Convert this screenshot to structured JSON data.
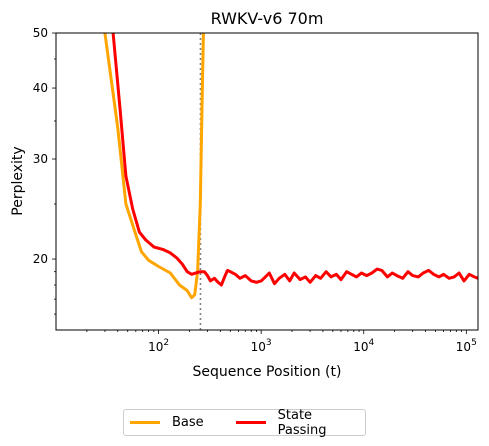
{
  "chart_data": {
    "type": "line",
    "title": "RWKV-v6 70m",
    "xlabel": "Sequence Position (t)",
    "ylabel": "Perplexity",
    "xscale": "log",
    "yscale": "log",
    "xlim": [
      10,
      130000
    ],
    "ylim": [
      15,
      50
    ],
    "xticks": [
      {
        "value": 100,
        "base": "10",
        "exp": "2"
      },
      {
        "value": 1000,
        "base": "10",
        "exp": "3"
      },
      {
        "value": 10000,
        "base": "10",
        "exp": "4"
      },
      {
        "value": 100000,
        "base": "10",
        "exp": "5"
      }
    ],
    "yticks": [
      {
        "value": 20,
        "label": "20"
      },
      {
        "value": 30,
        "label": "30"
      },
      {
        "value": 40,
        "label": "40"
      },
      {
        "value": 50,
        "label": "50"
      }
    ],
    "vline": {
      "x": 256,
      "style": "dotted",
      "color": "#808080"
    },
    "legend_position": "bottom-center",
    "series": [
      {
        "name": "Base",
        "color": "#FFA500",
        "x": [
          30,
          40,
          48,
          58,
          68,
          80,
          100,
          130,
          160,
          190,
          210,
          225,
          240,
          255,
          265,
          275
        ],
        "y": [
          50,
          34,
          25,
          22.5,
          20.6,
          19.9,
          19.4,
          18.9,
          18.0,
          17.6,
          17.1,
          17.3,
          19.0,
          25,
          37,
          52
        ]
      },
      {
        "name": "State Passing",
        "color": "#FF0000",
        "x": [
          36,
          42,
          48,
          56,
          65,
          75,
          90,
          110,
          130,
          150,
          170,
          190,
          210,
          230,
          255,
          280,
          300,
          320,
          350,
          380,
          410,
          440,
          470,
          500,
          560,
          620,
          700,
          800,
          900,
          1000,
          1100,
          1200,
          1350,
          1500,
          1700,
          1900,
          2100,
          2400,
          2700,
          3000,
          3400,
          3800,
          4300,
          4800,
          5400,
          6000,
          6800,
          7600,
          8500,
          9500,
          10700,
          12000,
          13500,
          15000,
          17000,
          19000,
          21000,
          24000,
          27000,
          30000,
          34000,
          38000,
          43000,
          48000,
          54000,
          60000,
          68000,
          76000,
          85000,
          95000,
          107000,
          120000,
          130000
        ],
        "y": [
          50,
          37,
          28,
          24.5,
          22.3,
          21.6,
          21.0,
          20.8,
          20.5,
          20.1,
          19.6,
          19.0,
          18.8,
          18.9,
          19.0,
          19.0,
          18.7,
          18.3,
          18.5,
          18.2,
          18.0,
          18.6,
          19.1,
          19.0,
          18.8,
          18.5,
          18.7,
          18.3,
          18.2,
          18.3,
          18.6,
          18.9,
          18.1,
          18.5,
          18.8,
          18.3,
          18.9,
          18.4,
          18.6,
          18.2,
          18.7,
          18.5,
          19.0,
          18.6,
          18.8,
          18.4,
          19.0,
          18.8,
          18.6,
          18.9,
          18.7,
          18.9,
          19.2,
          19.1,
          18.6,
          18.9,
          18.7,
          18.5,
          19.0,
          18.7,
          18.6,
          18.9,
          19.1,
          18.8,
          18.6,
          18.8,
          18.5,
          18.6,
          18.9,
          18.3,
          18.8,
          18.6,
          18.5
        ]
      }
    ]
  }
}
